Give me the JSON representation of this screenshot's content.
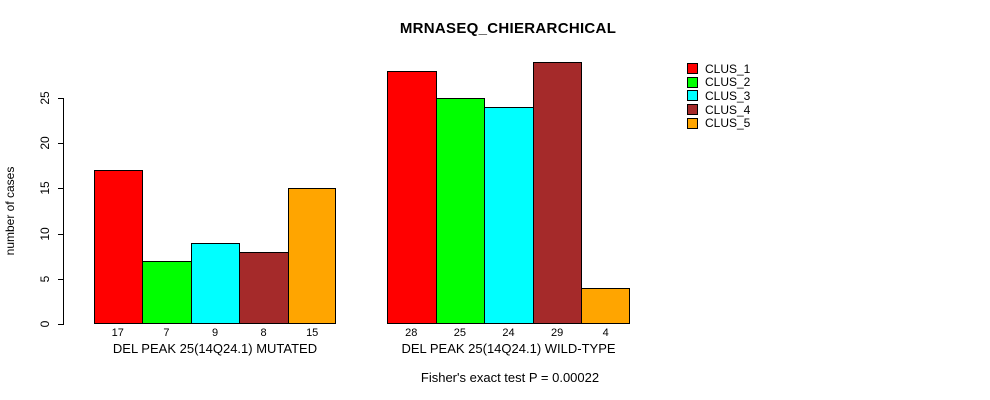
{
  "chart_data": {
    "type": "bar",
    "title": "MRNASEQ_CHIERARCHICAL",
    "ylabel": "number of cases",
    "xlabel": "",
    "yticks": [
      0,
      5,
      10,
      15,
      20,
      25
    ],
    "ylim": [
      0,
      29
    ],
    "grid": false,
    "legend_position": "right",
    "series_names": [
      "CLUS_1",
      "CLUS_2",
      "CLUS_3",
      "CLUS_4",
      "CLUS_5"
    ],
    "series_colors": [
      "#FF0000",
      "#00FF00",
      "#00FFFF",
      "#A52A2A",
      "#FFA500"
    ],
    "groups": [
      {
        "label": "DEL PEAK 25(14Q24.1) MUTATED",
        "values": [
          17,
          7,
          9,
          8,
          15
        ],
        "bar_value_labels": [
          "17",
          "7",
          "9",
          "8",
          "15"
        ]
      },
      {
        "label": "DEL PEAK 25(14Q24.1) WILD-TYPE",
        "values": [
          28,
          25,
          24,
          29,
          4
        ],
        "bar_value_labels": [
          "28",
          "25",
          "24",
          "29",
          "4"
        ]
      }
    ],
    "annotation": "Fisher's exact test P = 0.00022"
  },
  "legend": {
    "items": [
      {
        "label": "CLUS_1",
        "color": "#FF0000"
      },
      {
        "label": "CLUS_2",
        "color": "#00FF00"
      },
      {
        "label": "CLUS_3",
        "color": "#00FFFF"
      },
      {
        "label": "CLUS_4",
        "color": "#A52A2A"
      },
      {
        "label": "CLUS_5",
        "color": "#FFA500"
      }
    ]
  }
}
